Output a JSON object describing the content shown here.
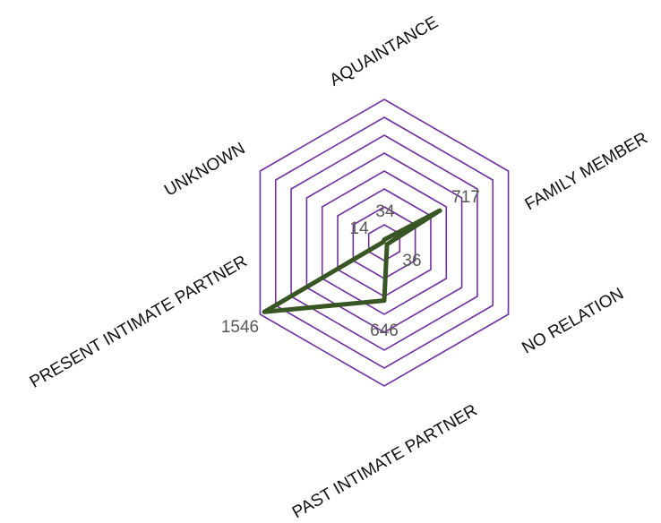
{
  "chart_data": {
    "type": "radar",
    "title": "",
    "categories": [
      "AQUAINTANCE",
      "FAMILY MEMBER",
      "NO RELATION",
      "PAST INTIMATE PARTNER",
      "PRESENT INTIMATE PARTNER",
      "UNKNOWN"
    ],
    "series": [
      {
        "values": [
          34,
          717,
          36,
          646,
          1546,
          14
        ]
      }
    ],
    "value_labels": [
      "34",
      "717",
      "36",
      "646",
      "1546",
      "14"
    ],
    "rlim": [
      0,
      1600
    ],
    "grid_rings": 8,
    "grid_shape": "hexagon",
    "legend": "none",
    "colors": {
      "grid": "#7030a0",
      "series": "#375623",
      "value_text": "#595959",
      "category_text": "#111111"
    }
  }
}
